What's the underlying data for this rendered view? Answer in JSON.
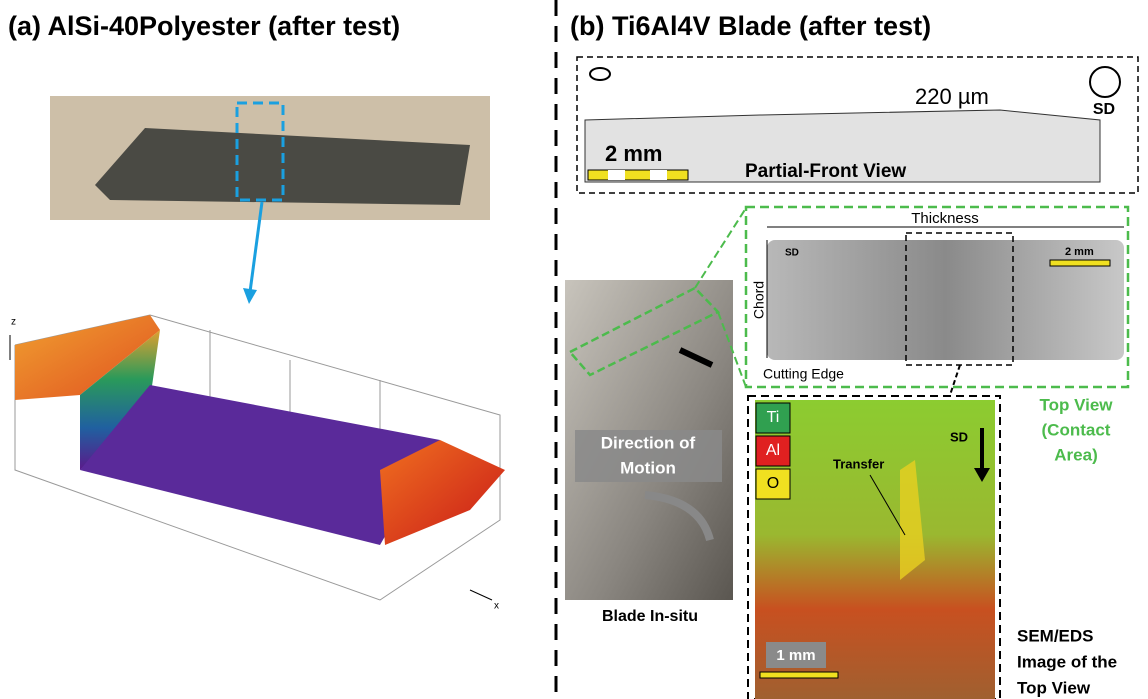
{
  "panel_a": {
    "title": "(a) AlSi-40Polyester (after test)",
    "axis_z": "z",
    "axis_x": "x"
  },
  "panel_b": {
    "title": "(b) Ti6Al4V Blade (after test)",
    "front_view": {
      "measurement": "220 µm",
      "direction": "SD",
      "scale": "2 mm",
      "label": "Partial-Front View"
    },
    "top_view": {
      "thickness": "Thickness",
      "chord": "Chord",
      "direction": "SD",
      "scale": "2 mm",
      "edge": "Cutting Edge",
      "caption": [
        "Top View",
        "(Contact",
        "Area)"
      ]
    },
    "blade": {
      "motion": [
        "Direction of",
        "Motion"
      ],
      "caption": "Blade In-situ"
    },
    "sem": {
      "elements": [
        "Ti",
        "Al",
        "O"
      ],
      "direction": "SD",
      "annotation": "Transfer",
      "scale": "1 mm",
      "caption": [
        "SEM/EDS",
        "Image of the",
        "Top View"
      ]
    }
  }
}
